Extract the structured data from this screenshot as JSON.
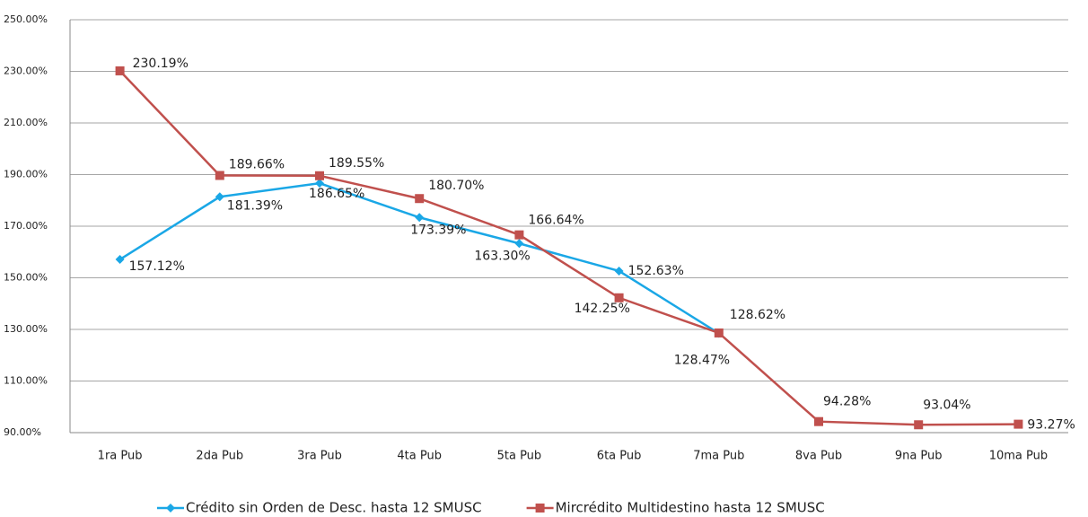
{
  "chart_data": {
    "type": "line",
    "categories": [
      "1ra Pub",
      "2da Pub",
      "3ra Pub",
      "4ta Pub",
      "5ta Pub",
      "6ta Pub",
      "7ma Pub",
      "8va Pub",
      "9na Pub",
      "10ma Pub"
    ],
    "series": [
      {
        "name": "Crédito sin Orden de Desc. hasta 12 SMUSC",
        "color": "#1aa7e6",
        "marker": "diamond",
        "values": [
          157.12,
          181.39,
          186.65,
          173.39,
          163.3,
          152.63,
          128.47,
          null,
          null,
          null
        ],
        "value_labels": [
          "157.12%",
          "181.39%",
          "186.65%",
          "173.39%",
          "163.30%",
          "152.63%",
          "128.47%",
          null,
          null,
          null
        ]
      },
      {
        "name": "Mircrédito Multidestino hasta 12 SMUSC",
        "color": "#c0504d",
        "marker": "square",
        "values": [
          230.19,
          189.66,
          189.55,
          180.7,
          166.64,
          142.25,
          128.62,
          94.28,
          93.04,
          93.27
        ],
        "value_labels": [
          "230.19%",
          "189.66%",
          "189.55%",
          "180.70%",
          "166.64%",
          "142.25%",
          "128.62%",
          "94.28%",
          "93.04%",
          "93.27%"
        ]
      }
    ],
    "ylim": [
      90,
      250
    ],
    "yticks": [
      {
        "value": 90,
        "label": "90.00%"
      },
      {
        "value": 110,
        "label": "110.00%"
      },
      {
        "value": 130,
        "label": "130.00%"
      },
      {
        "value": 150,
        "label": "150.00%"
      },
      {
        "value": 170,
        "label": "170.00%"
      },
      {
        "value": 190,
        "label": "190.00%"
      },
      {
        "value": 210,
        "label": "210.00%"
      },
      {
        "value": 230,
        "label": "230.00%"
      },
      {
        "value": 250,
        "label": "250.00%"
      }
    ],
    "grid": true,
    "legend": "bottom"
  }
}
